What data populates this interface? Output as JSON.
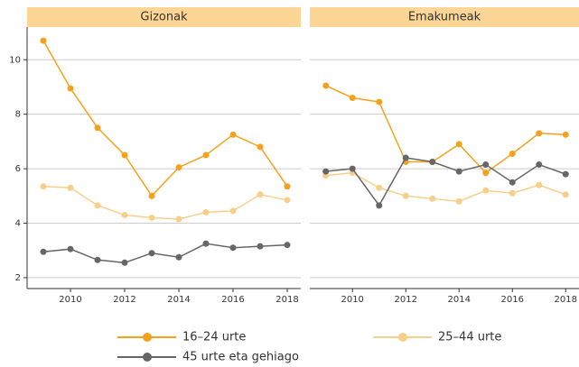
{
  "chart_data": {
    "type": "line",
    "x": [
      2009,
      2010,
      2011,
      2012,
      2013,
      2014,
      2015,
      2016,
      2017,
      2018
    ],
    "xlim": [
      2008.4,
      2018.5
    ],
    "xticks": [
      2010,
      2012,
      2014,
      2016,
      2018
    ],
    "ylim": [
      1.6,
      11.2
    ],
    "yticks": [
      2,
      4,
      6,
      8,
      10
    ],
    "grid": true,
    "legend": "bottom",
    "series": [
      {
        "name": "16–24 urte",
        "color": "#f5a11c"
      },
      {
        "name": "25–44 urte",
        "color": "#f8cf8a"
      },
      {
        "name": "45 urte eta gehiago",
        "color": "#666666"
      }
    ],
    "panels": [
      {
        "title": "Gizonak",
        "values": [
          [
            10.7,
            8.95,
            7.5,
            6.5,
            5.0,
            6.05,
            6.5,
            7.25,
            6.8,
            5.35
          ],
          [
            5.35,
            5.3,
            4.65,
            4.3,
            4.2,
            4.15,
            4.4,
            4.45,
            5.05,
            4.85
          ],
          [
            2.95,
            3.05,
            2.65,
            2.55,
            2.9,
            2.75,
            3.25,
            3.1,
            3.15,
            3.2
          ]
        ]
      },
      {
        "title": "Emakumeak",
        "values": [
          [
            9.05,
            8.6,
            8.45,
            6.25,
            6.25,
            6.9,
            5.85,
            6.55,
            7.3,
            7.25
          ],
          [
            5.75,
            5.85,
            5.3,
            5.0,
            4.9,
            4.8,
            5.2,
            5.1,
            5.4,
            5.05
          ],
          [
            5.9,
            6.0,
            4.65,
            6.4,
            6.25,
            5.9,
            6.15,
            5.5,
            6.15,
            5.8
          ]
        ]
      }
    ]
  }
}
